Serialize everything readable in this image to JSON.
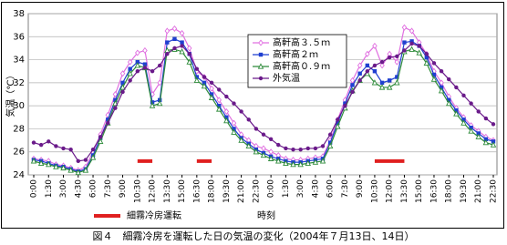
{
  "chart_data": {
    "type": "line",
    "y_label": "気温（℃）",
    "x_label": "時刻",
    "caption": "図４　細霧冷房を運転した日の気温の変化（2004年７月13日、14日）",
    "categories": [
      "0:00",
      null,
      "1:30",
      null,
      "3:00",
      null,
      "4:30",
      null,
      "6:00",
      null,
      "7:30",
      null,
      "9:00",
      null,
      "10:30",
      null,
      "12:00",
      null,
      "13:30",
      null,
      "15:00",
      null,
      "16:30",
      null,
      "18:00",
      null,
      "19:30",
      null,
      "21:00",
      null,
      "22:30",
      null,
      "0:00",
      null,
      "1:30",
      null,
      "3:00",
      null,
      "4:30",
      null,
      "6:00",
      null,
      "7:30",
      null,
      "9:00",
      null,
      "10:30",
      null,
      "12:00",
      null,
      "13:30",
      null,
      "15:00",
      null,
      "16:30",
      null,
      "18:00",
      null,
      "19:30",
      null,
      "21:00",
      null,
      "22:30"
    ],
    "ylim": [
      24,
      38
    ],
    "yticks": [
      24,
      26,
      28,
      30,
      32,
      34,
      36,
      38
    ],
    "grid": true,
    "series": [
      {
        "name": "高軒高３.５ｍ",
        "color": "#e070e0",
        "marker": "diamond",
        "values": [
          25.4,
          25.3,
          25.2,
          24.9,
          24.8,
          24.6,
          24.4,
          24.7,
          26.0,
          27.5,
          29.2,
          31.0,
          32.8,
          33.8,
          34.6,
          34.8,
          31.0,
          32.0,
          36.5,
          36.7,
          36.3,
          35.0,
          33.0,
          32.5,
          31.5,
          30.5,
          29.5,
          28.5,
          27.5,
          27.0,
          26.5,
          26.3,
          26.0,
          25.7,
          25.4,
          25.3,
          25.3,
          25.4,
          25.5,
          25.6,
          27.0,
          28.8,
          30.5,
          32.2,
          33.5,
          34.5,
          35.2,
          33.5,
          34.5,
          33.8,
          36.8,
          36.5,
          35.5,
          34.5,
          33.0,
          32.0,
          30.8,
          29.8,
          29.0,
          28.3,
          27.8,
          27.3,
          27.0
        ]
      },
      {
        "name": "高軒高２ｍ",
        "color": "#1f3fd0",
        "marker": "square",
        "values": [
          25.3,
          25.2,
          25.0,
          24.8,
          24.7,
          24.5,
          24.3,
          24.5,
          25.7,
          27.2,
          28.8,
          30.5,
          32.0,
          33.2,
          33.8,
          33.6,
          30.3,
          30.5,
          35.5,
          35.8,
          35.5,
          34.5,
          32.5,
          32.0,
          31.0,
          30.0,
          29.0,
          28.0,
          27.2,
          26.7,
          26.2,
          25.9,
          25.6,
          25.4,
          25.2,
          25.1,
          25.1,
          25.2,
          25.3,
          25.4,
          26.8,
          28.5,
          30.2,
          31.8,
          32.8,
          33.5,
          33.0,
          32.0,
          32.2,
          32.5,
          35.5,
          35.6,
          35.2,
          34.2,
          32.7,
          31.6,
          30.5,
          29.6,
          28.8,
          28.1,
          27.6,
          27.1,
          26.9
        ]
      },
      {
        "name": "高軒高０.９ｍ",
        "color": "#2e8b3a",
        "marker": "triangle",
        "values": [
          25.2,
          25.0,
          24.9,
          24.7,
          24.6,
          24.4,
          24.2,
          24.4,
          25.5,
          26.9,
          28.5,
          30.2,
          31.6,
          32.8,
          33.5,
          33.3,
          30.0,
          30.2,
          34.8,
          34.9,
          34.7,
          33.8,
          32.2,
          31.7,
          30.7,
          29.7,
          28.7,
          27.7,
          27.0,
          26.5,
          26.0,
          25.7,
          25.4,
          25.2,
          25.0,
          24.9,
          24.9,
          25.0,
          25.1,
          25.2,
          26.5,
          28.2,
          29.8,
          31.3,
          32.2,
          32.8,
          32.0,
          31.6,
          31.6,
          32.0,
          34.7,
          34.9,
          34.6,
          33.7,
          32.3,
          31.3,
          30.2,
          29.3,
          28.5,
          27.8,
          27.3,
          26.8,
          26.6
        ]
      },
      {
        "name": "外気温",
        "color": "#6a1a8a",
        "marker": "circle",
        "values": [
          26.8,
          26.6,
          26.9,
          26.5,
          26.3,
          26.2,
          25.2,
          25.3,
          26.2,
          27.3,
          28.5,
          29.8,
          31.2,
          32.2,
          33.0,
          33.3,
          33.0,
          33.5,
          34.5,
          35.0,
          35.2,
          34.5,
          33.2,
          32.5,
          32.0,
          31.4,
          30.8,
          30.2,
          29.5,
          28.8,
          28.0,
          27.5,
          27.1,
          26.6,
          26.3,
          26.2,
          26.2,
          26.3,
          26.3,
          26.5,
          27.5,
          28.8,
          30.0,
          31.2,
          32.2,
          33.0,
          33.5,
          33.8,
          34.2,
          34.3,
          34.8,
          35.4,
          35.2,
          34.5,
          33.7,
          33.0,
          32.3,
          31.6,
          30.9,
          30.2,
          29.5,
          28.9,
          28.4
        ]
      },
      {
        "name": "細霧冷房運転",
        "color": "#e02020",
        "marker": "none",
        "values": [
          null,
          null,
          null,
          null,
          null,
          null,
          null,
          null,
          null,
          null,
          null,
          null,
          null,
          null,
          25.2,
          25.2,
          25.2,
          null,
          null,
          null,
          null,
          null,
          25.2,
          25.2,
          25.2,
          null,
          null,
          null,
          null,
          null,
          null,
          null,
          null,
          null,
          null,
          null,
          null,
          null,
          null,
          null,
          null,
          null,
          null,
          null,
          null,
          null,
          25.2,
          25.2,
          25.2,
          25.2,
          25.2,
          null,
          null,
          null,
          null,
          null,
          null,
          null,
          null,
          null,
          null,
          null,
          null
        ]
      }
    ]
  }
}
